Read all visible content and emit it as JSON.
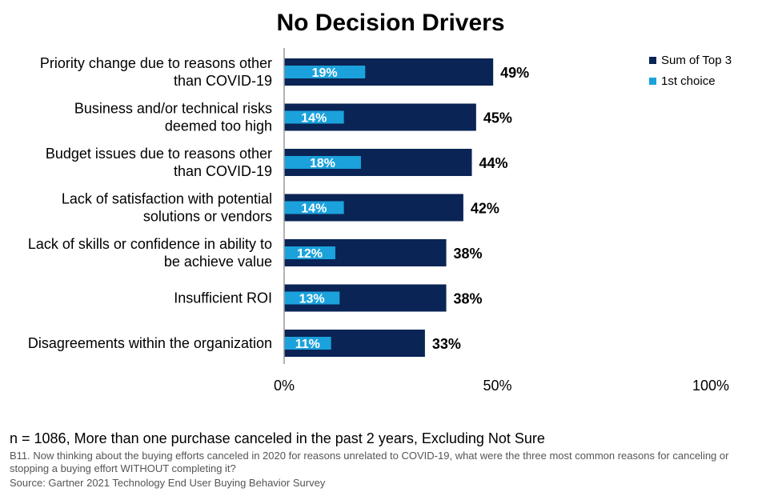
{
  "chart_data": {
    "type": "bar",
    "orientation": "horizontal",
    "title": "No Decision Drivers",
    "categories": [
      [
        "Priority change due to reasons other",
        "than COVID-19"
      ],
      [
        "Business and/or technical risks",
        "deemed too high"
      ],
      [
        "Budget issues due to reasons other",
        "than COVID-19"
      ],
      [
        "Lack of satisfaction with potential",
        "solutions or vendors"
      ],
      [
        "Lack of skills or confidence in ability to",
        "be achieve value"
      ],
      [
        "Insufficient ROI"
      ],
      [
        "Disagreements within the organization"
      ]
    ],
    "series": [
      {
        "name": "Sum of Top 3",
        "color": "#0a2455",
        "values": [
          49,
          45,
          44,
          42,
          38,
          38,
          33
        ],
        "labels": [
          "49%",
          "45%",
          "44%",
          "42%",
          "38%",
          "38%",
          "33%"
        ]
      },
      {
        "name": "1st choice",
        "color": "#1ba2dc",
        "values": [
          19,
          14,
          18,
          14,
          12,
          13,
          11
        ],
        "labels": [
          "19%",
          "14%",
          "18%",
          "14%",
          "12%",
          "13%",
          "11%"
        ]
      }
    ],
    "xlim": [
      0,
      100
    ],
    "xticks": [
      0,
      50,
      100
    ],
    "xtick_labels": [
      "0%",
      "50%",
      "100%"
    ],
    "grid": false,
    "legend_position": "top-right"
  },
  "footer": {
    "sample": "n = 1086, More than one purchase canceled in the past 2 years, Excluding Not Sure",
    "question": "B11. Now thinking about the buying efforts canceled in 2020 for reasons unrelated to COVID-19, what were the three most common reasons for canceling or stopping a buying effort WITHOUT completing it?",
    "source": "Source: Gartner  2021 Technology End User Buying Behavior Survey"
  }
}
